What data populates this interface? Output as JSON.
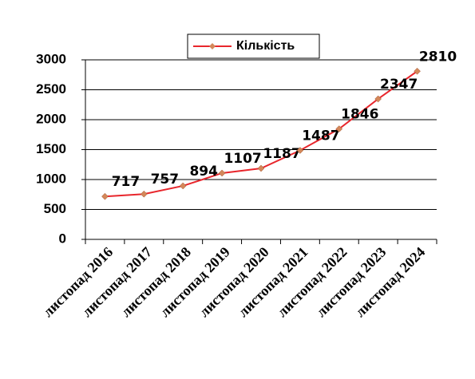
{
  "chart_data": {
    "type": "line",
    "categories": [
      "листопад 2016",
      "листопад 2017",
      "листопад 2018",
      "листопад 2019",
      "листопад 2020",
      "листопад 2021",
      "листопад 2022",
      "листопад 2023",
      "листопад 2024"
    ],
    "series": [
      {
        "name": "Кількість",
        "color": "#e8262c",
        "marker_color": "#d4885a",
        "values": [
          717,
          757,
          894,
          1107,
          1187,
          1487,
          1846,
          2347,
          2810
        ]
      }
    ],
    "ylim": [
      0,
      3000
    ],
    "yticks": [
      0,
      500,
      1000,
      1500,
      2000,
      2500,
      3000
    ],
    "grid": true,
    "legend": "top"
  }
}
